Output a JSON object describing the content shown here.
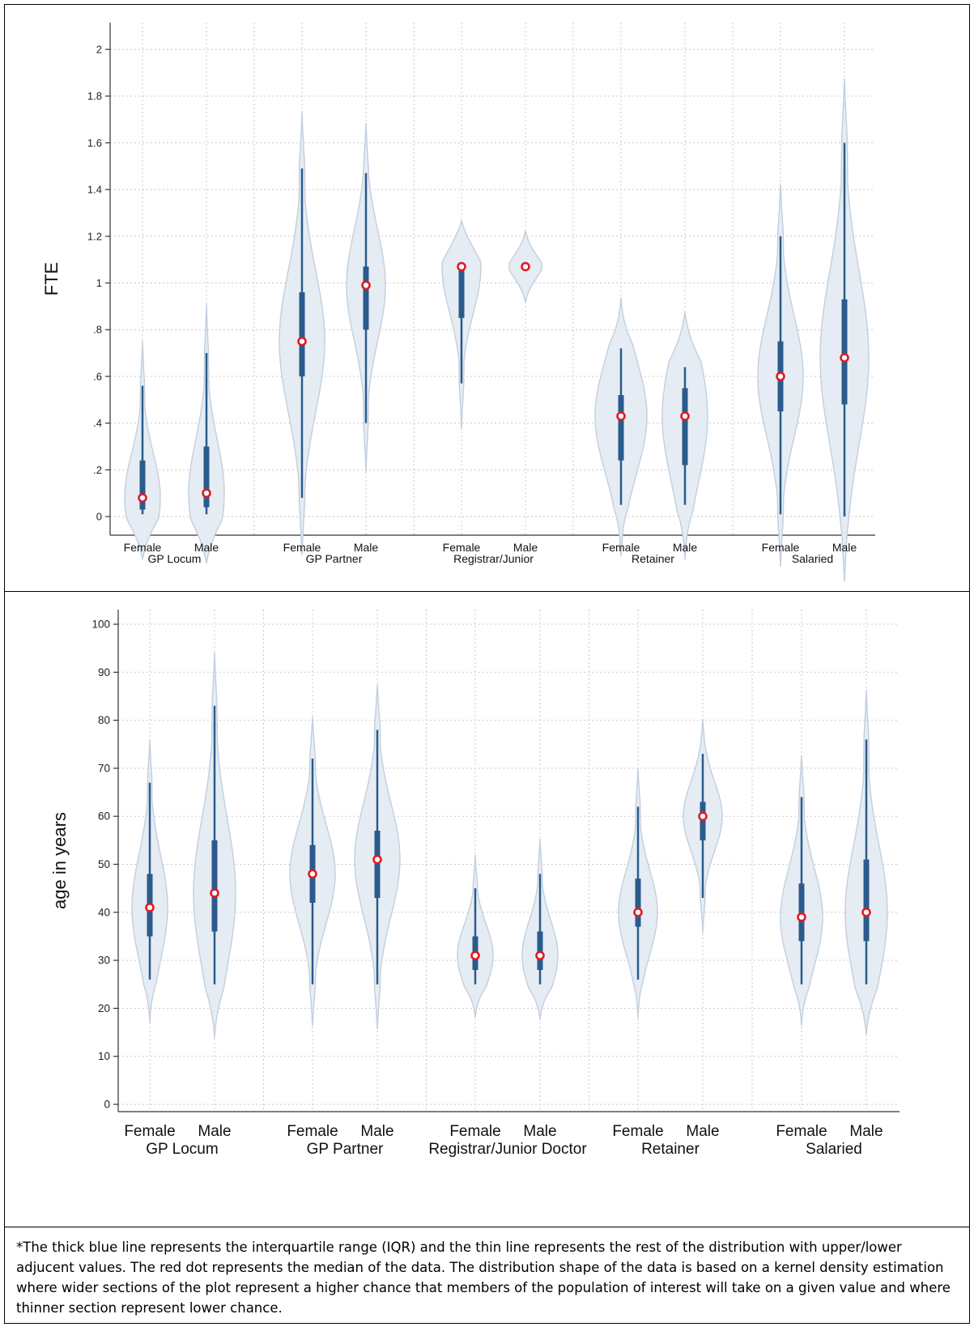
{
  "chart_data": [
    {
      "type": "violin",
      "ylabel": "FTE",
      "ylim": [
        -0.1,
        2.1
      ],
      "yticks": [
        0,
        0.2,
        0.4,
        0.6,
        0.8,
        1,
        1.2,
        1.4,
        1.6,
        1.8,
        2
      ],
      "ytick_labels": [
        "0",
        ".2",
        ".4",
        ".6",
        ".8",
        "1",
        "1.2",
        "1.4",
        "1.6",
        "1.8",
        "2"
      ],
      "group_names": [
        "GP Locum",
        "GP Partner",
        "Registrar/Junior",
        "Retainer",
        "Salaried"
      ],
      "categories": [
        "Female",
        "Male",
        "Female",
        "Male",
        "Female",
        "Male",
        "Female",
        "Male",
        "Female",
        "Male"
      ],
      "median": [
        0.08,
        0.1,
        0.75,
        0.99,
        1.07,
        1.07,
        0.43,
        0.43,
        0.6,
        0.68
      ],
      "q1": [
        0.03,
        0.04,
        0.6,
        0.8,
        0.85,
        1.07,
        0.24,
        0.22,
        0.45,
        0.48
      ],
      "q3": [
        0.24,
        0.3,
        0.96,
        1.07,
        1.07,
        1.07,
        0.52,
        0.55,
        0.75,
        0.93
      ],
      "whisker_low": [
        0.01,
        0.01,
        0.08,
        0.4,
        0.57,
        1.07,
        0.05,
        0.05,
        0.01,
        0.0
      ],
      "whisker_high": [
        0.56,
        0.7,
        1.49,
        1.47,
        1.07,
        1.07,
        0.72,
        0.64,
        1.2,
        1.6
      ]
    },
    {
      "type": "violin",
      "ylabel": "age in years",
      "ylim": [
        -3,
        103
      ],
      "yticks": [
        0,
        10,
        20,
        30,
        40,
        50,
        60,
        70,
        80,
        90,
        100
      ],
      "ytick_labels": [
        "0",
        "10",
        "20",
        "30",
        "40",
        "50",
        "60",
        "70",
        "80",
        "90",
        "100"
      ],
      "group_names": [
        "GP Locum",
        "GP Partner",
        "Registrar/Junior Doctor",
        "Retainer",
        "Salaried"
      ],
      "categories": [
        "Female",
        "Male",
        "Female",
        "Male",
        "Female",
        "Male",
        "Female",
        "Male",
        "Female",
        "Male"
      ],
      "median": [
        41,
        44,
        48,
        51,
        31,
        31,
        40,
        60,
        39,
        40
      ],
      "q1": [
        35,
        36,
        42,
        43,
        28,
        28,
        37,
        55,
        34,
        34
      ],
      "q3": [
        48,
        55,
        54,
        57,
        35,
        36,
        47,
        63,
        46,
        51
      ],
      "whisker_low": [
        26,
        25,
        25,
        25,
        25,
        25,
        26,
        43,
        25,
        25
      ],
      "whisker_high": [
        67,
        83,
        72,
        78,
        45,
        48,
        62,
        73,
        64,
        76
      ]
    }
  ],
  "footnote": "*The thick blue line represents the interquartile range (IQR) and the thin line represents the rest of the distribution with upper/lower adjucent values. The red dot represents the median of the data. The distribution shape of the data  is based on a  kernel density estimation where  wider sections of the plot represent a higher chance that members of the population of interest will take on a given value and where thinner section represent lower chance."
}
